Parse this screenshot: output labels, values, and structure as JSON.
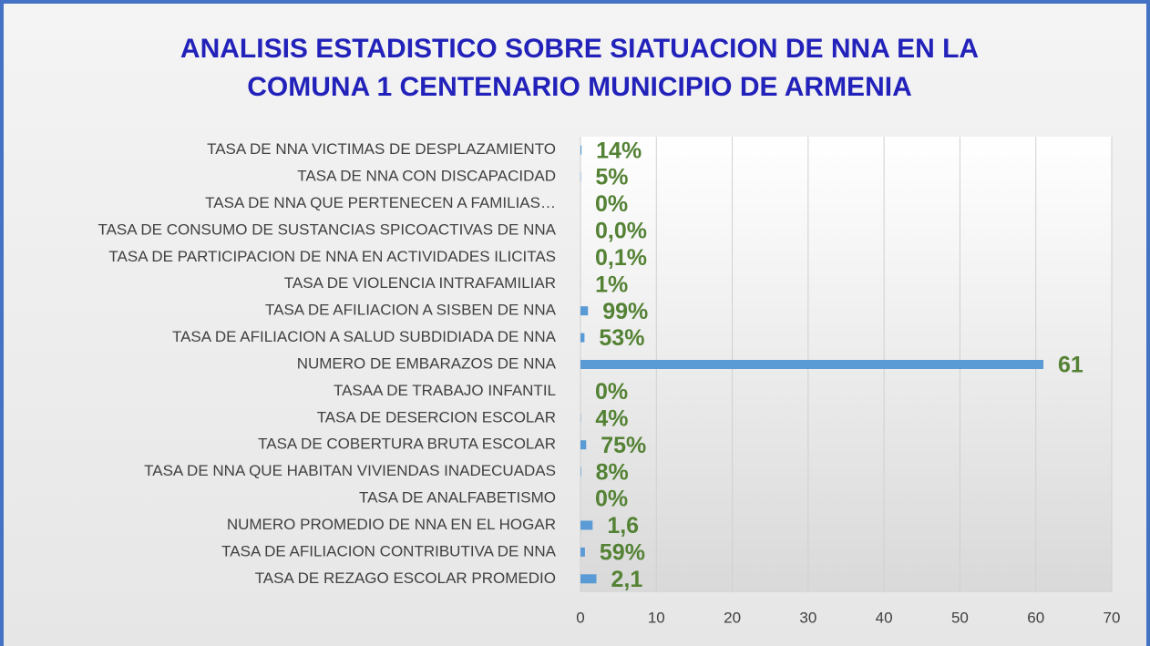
{
  "chart_data": {
    "type": "barh",
    "title": [
      "ANALISIS ESTADISTICO SOBRE SIATUACION DE NNA EN LA",
      "COMUNA 1 CENTENARIO MUNICIPIO DE ARMENIA"
    ],
    "categories": [
      "TASA DE NNA VICTIMAS DE DESPLAZAMIENTO",
      "TASA DE NNA CON  DISCAPACIDAD",
      "TASA DE NNA QUE PERTENECEN A FAMILIAS…",
      "TASA DE CONSUMO DE SUSTANCIAS SPICOACTIVAS DE NNA",
      "TASA DE PARTICIPACION DE NNA EN ACTIVIDADES ILICITAS",
      "TASA DE VIOLENCIA INTRAFAMILIAR",
      "TASA DE AFILIACION A SISBEN DE NNA",
      "TASA DE AFILIACION A SALUD SUBDIDIADA DE NNA",
      "NUMERO DE EMBARAZOS DE NNA",
      "TASAA DE TRABAJO INFANTIL",
      "TASA DE DESERCION ESCOLAR",
      "TASA DE COBERTURA BRUTA ESCOLAR",
      "TASA DE NNA QUE HABITAN VIVIENDAS INADECUADAS",
      "TASA DE ANALFABETISMO",
      "NUMERO PROMEDIO DE NNA EN EL HOGAR",
      "TASA DE AFILIACION CONTRIBUTIVA DE NNA",
      "TASA DE REZAGO ESCOLAR PROMEDIO"
    ],
    "values": [
      0.14,
      0.05,
      0,
      0,
      0.001,
      0.01,
      0.99,
      0.53,
      61,
      0,
      0.04,
      0.75,
      0.08,
      0,
      1.6,
      0.59,
      2.1
    ],
    "value_labels": [
      "14%",
      "5%",
      "0%",
      "0,0%",
      "0,1%",
      "1%",
      "99%",
      "53%",
      "61",
      "0%",
      "4%",
      "75%",
      "8%",
      "0%",
      "1,6",
      "59%",
      "2,1"
    ],
    "color": "#5b9bd5",
    "xlim": [
      0,
      70
    ],
    "xticks": [
      0,
      10,
      20,
      30,
      40,
      50,
      60,
      70
    ],
    "grid": true
  }
}
